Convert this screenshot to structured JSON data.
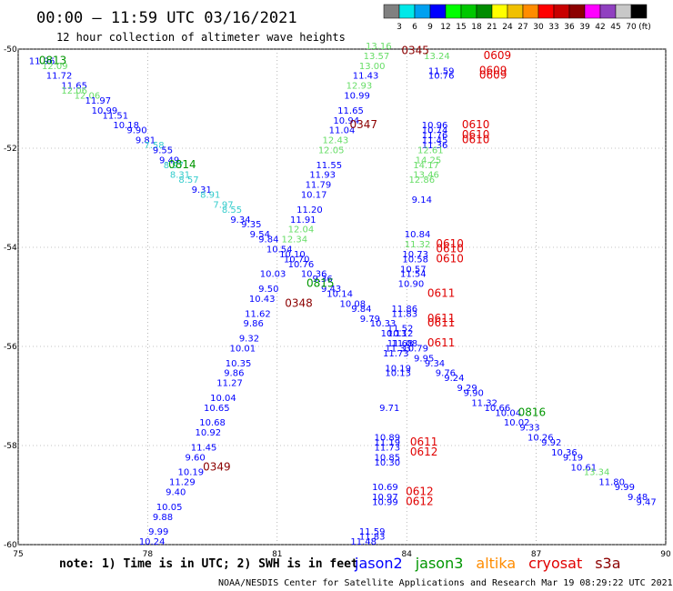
{
  "header": {
    "time_range": "00:00 – 11:59 UTC 03/16/2021",
    "subtitle": "12 hour collection of altimeter wave heights"
  },
  "colorbar": {
    "colors": [
      "#808080",
      "#00e8e8",
      "#00a0f0",
      "#0000ff",
      "#00ff00",
      "#00c800",
      "#008c00",
      "#ffff00",
      "#f0c000",
      "#ff8c00",
      "#ff0000",
      "#c80000",
      "#8c0000",
      "#ff00ff",
      "#9040c0",
      "#c8c8c8",
      "#000000"
    ],
    "labels": [
      "3",
      "6",
      "9",
      "12",
      "15",
      "18",
      "21",
      "24",
      "27",
      "30",
      "33",
      "36",
      "39",
      "42",
      "45",
      "70"
    ],
    "unit": "(ft)"
  },
  "chart_data": {
    "type": "scatter",
    "xlim": [
      75,
      90
    ],
    "ylim": [
      -60,
      -50
    ],
    "x_ticks": [
      "75",
      "78",
      "81",
      "84",
      "87",
      "90"
    ],
    "y_ticks": [
      "-50",
      "-52",
      "-54",
      "-56",
      "-58",
      "-60"
    ],
    "grid": true,
    "legend": {
      "note": "note:  1) Time is in UTC;  2) SWH is in feet",
      "entries": [
        {
          "name": "jason2",
          "color": "#0000ff"
        },
        {
          "name": "jason3",
          "color": "#009600"
        },
        {
          "name": "altika",
          "color": "#ff8c00"
        },
        {
          "name": "cryosat",
          "color": "#e00000"
        },
        {
          "name": "s3a",
          "color": "#8c0000"
        }
      ]
    },
    "footer": "NOAA/NESDIS Center for Satellite Applications and Research   Mar 19 08:29:22 UTC 2021",
    "time_labels": [
      {
        "text": "0813",
        "lon": 75.8,
        "lat": -50.3,
        "color": "#009600"
      },
      {
        "text": "0814",
        "lon": 78.8,
        "lat": -52.4,
        "color": "#009600"
      },
      {
        "text": "0815",
        "lon": 82.0,
        "lat": -54.8,
        "color": "#009600"
      },
      {
        "text": "0816",
        "lon": 86.9,
        "lat": -57.4,
        "color": "#009600"
      },
      {
        "text": "0345",
        "lon": 84.2,
        "lat": -50.1,
        "color": "#8c0000"
      },
      {
        "text": "0347",
        "lon": 83.0,
        "lat": -51.6,
        "color": "#8c0000"
      },
      {
        "text": "0348",
        "lon": 81.5,
        "lat": -55.2,
        "color": "#8c0000"
      },
      {
        "text": "0349",
        "lon": 79.6,
        "lat": -58.5,
        "color": "#8c0000"
      },
      {
        "text": "0609",
        "lon": 86.1,
        "lat": -50.2,
        "color": "#e00000"
      },
      {
        "text": "0609",
        "lon": 86.0,
        "lat": -50.5,
        "color": "#e00000"
      },
      {
        "text": "0609",
        "lon": 86.0,
        "lat": -50.6,
        "color": "#e00000"
      },
      {
        "text": "0610",
        "lon": 85.6,
        "lat": -51.6,
        "color": "#e00000"
      },
      {
        "text": "0610",
        "lon": 85.6,
        "lat": -51.8,
        "color": "#e00000"
      },
      {
        "text": "0610",
        "lon": 85.6,
        "lat": -51.9,
        "color": "#e00000"
      },
      {
        "text": "0610",
        "lon": 85.0,
        "lat": -54.0,
        "color": "#e00000"
      },
      {
        "text": "0610",
        "lon": 85.0,
        "lat": -54.1,
        "color": "#e00000"
      },
      {
        "text": "0610",
        "lon": 85.0,
        "lat": -54.3,
        "color": "#e00000"
      },
      {
        "text": "0611",
        "lon": 84.8,
        "lat": -55.0,
        "color": "#e00000"
      },
      {
        "text": "0611",
        "lon": 84.8,
        "lat": -55.5,
        "color": "#e00000"
      },
      {
        "text": "0611",
        "lon": 84.8,
        "lat": -55.6,
        "color": "#e00000"
      },
      {
        "text": "0611",
        "lon": 84.8,
        "lat": -56.0,
        "color": "#e00000"
      },
      {
        "text": "0611",
        "lon": 84.4,
        "lat": -58.0,
        "color": "#e00000"
      },
      {
        "text": "0612",
        "lon": 84.4,
        "lat": -58.2,
        "color": "#e00000"
      },
      {
        "text": "0612",
        "lon": 84.3,
        "lat": -59.0,
        "color": "#e00000"
      },
      {
        "text": "0612",
        "lon": 84.3,
        "lat": -59.2,
        "color": "#e00000"
      }
    ],
    "series": [
      {
        "name": "track 0813-0816",
        "points": [
          [
            75.55,
            -50.3,
            11.96,
            "#0000ff"
          ],
          [
            75.85,
            -50.4,
            12.09,
            "#66dd66"
          ],
          [
            75.95,
            -50.6,
            11.72,
            "#0000ff"
          ],
          [
            76.3,
            -50.8,
            11.65,
            "#0000ff"
          ],
          [
            76.3,
            -50.9,
            12.06,
            "#66dd66"
          ],
          [
            76.6,
            -51.0,
            12.06,
            "#66dd66"
          ],
          [
            76.85,
            -51.1,
            11.97,
            "#0000ff"
          ],
          [
            77.0,
            -51.3,
            10.99,
            "#0000ff"
          ],
          [
            77.25,
            -51.4,
            11.51,
            "#0000ff"
          ],
          [
            77.5,
            -51.6,
            10.18,
            "#0000ff"
          ],
          [
            77.75,
            -51.7,
            9.9,
            "#0000ff"
          ],
          [
            77.95,
            -51.9,
            9.81,
            "#0000ff"
          ],
          [
            78.15,
            -52.0,
            7.58,
            "#33cccc"
          ],
          [
            78.35,
            -52.1,
            9.55,
            "#0000ff"
          ],
          [
            78.5,
            -52.3,
            9.49,
            "#0000ff"
          ],
          [
            78.6,
            -52.4,
            8.97,
            "#33cccc"
          ],
          [
            78.75,
            -52.6,
            8.31,
            "#33cccc"
          ],
          [
            78.95,
            -52.7,
            8.57,
            "#33cccc"
          ],
          [
            79.25,
            -52.9,
            9.31,
            "#0000ff"
          ],
          [
            79.45,
            -53.0,
            8.91,
            "#33cccc"
          ],
          [
            79.75,
            -53.2,
            7.97,
            "#33cccc"
          ],
          [
            79.95,
            -53.3,
            8.55,
            "#33cccc"
          ],
          [
            80.15,
            -53.5,
            9.34,
            "#0000ff"
          ],
          [
            80.4,
            -53.6,
            9.35,
            "#0000ff"
          ],
          [
            80.6,
            -53.8,
            9.54,
            "#0000ff"
          ],
          [
            80.8,
            -53.9,
            9.84,
            "#0000ff"
          ],
          [
            81.05,
            -54.1,
            10.54,
            "#0000ff"
          ],
          [
            81.35,
            -54.2,
            10.1,
            "#0000ff"
          ],
          [
            81.45,
            -54.3,
            10.7,
            "#0000ff"
          ],
          [
            81.55,
            -54.4,
            10.76,
            "#0000ff"
          ],
          [
            81.85,
            -54.6,
            10.36,
            "#0000ff"
          ],
          [
            82.05,
            -54.7,
            9.36,
            "#0000ff"
          ],
          [
            82.25,
            -54.9,
            9.43,
            "#0000ff"
          ],
          [
            82.45,
            -55.0,
            10.14,
            "#0000ff"
          ],
          [
            82.75,
            -55.2,
            10.08,
            "#0000ff"
          ],
          [
            82.95,
            -55.3,
            9.84,
            "#0000ff"
          ],
          [
            83.15,
            -55.5,
            9.79,
            "#0000ff"
          ],
          [
            83.45,
            -55.6,
            10.33,
            "#0000ff"
          ],
          [
            83.7,
            -55.8,
            10.13,
            "#0000ff"
          ],
          [
            83.95,
            -56.0,
            11.08,
            "#0000ff"
          ],
          [
            84.2,
            -56.1,
            10.79,
            "#0000ff"
          ],
          [
            84.4,
            -56.3,
            9.95,
            "#0000ff"
          ],
          [
            84.65,
            -56.4,
            9.34,
            "#0000ff"
          ],
          [
            84.9,
            -56.6,
            9.76,
            "#0000ff"
          ],
          [
            85.1,
            -56.7,
            9.24,
            "#0000ff"
          ],
          [
            85.4,
            -56.9,
            9.29,
            "#0000ff"
          ],
          [
            85.55,
            -57.0,
            9.9,
            "#0000ff"
          ],
          [
            85.8,
            -57.2,
            11.32,
            "#0000ff"
          ],
          [
            86.1,
            -57.3,
            10.66,
            "#0000ff"
          ],
          [
            86.35,
            -57.4,
            10.04,
            "#0000ff"
          ],
          [
            86.55,
            -57.6,
            10.02,
            "#0000ff"
          ],
          [
            86.85,
            -57.7,
            9.33,
            "#0000ff"
          ],
          [
            87.1,
            -57.9,
            10.26,
            "#0000ff"
          ],
          [
            87.35,
            -58.0,
            9.92,
            "#0000ff"
          ],
          [
            87.65,
            -58.2,
            10.36,
            "#0000ff"
          ],
          [
            87.85,
            -58.3,
            9.19,
            "#0000ff"
          ],
          [
            88.1,
            -58.5,
            10.61,
            "#0000ff"
          ],
          [
            88.4,
            -58.6,
            13.34,
            "#66dd66"
          ],
          [
            88.75,
            -58.8,
            11.8,
            "#0000ff"
          ],
          [
            89.05,
            -58.9,
            9.99,
            "#0000ff"
          ],
          [
            89.35,
            -59.1,
            9.48,
            "#0000ff"
          ],
          [
            89.55,
            -59.2,
            9.47,
            "#0000ff"
          ]
        ]
      },
      {
        "name": "track 0345-0349",
        "points": [
          [
            83.35,
            -50.0,
            13.16,
            "#66dd66"
          ],
          [
            83.3,
            -50.2,
            13.57,
            "#66dd66"
          ],
          [
            83.2,
            -50.4,
            13.0,
            "#66dd66"
          ],
          [
            83.05,
            -50.6,
            11.43,
            "#0000ff"
          ],
          [
            82.9,
            -50.8,
            12.93,
            "#66dd66"
          ],
          [
            82.85,
            -51.0,
            10.99,
            "#0000ff"
          ],
          [
            82.7,
            -51.3,
            11.65,
            "#0000ff"
          ],
          [
            82.6,
            -51.5,
            10.94,
            "#0000ff"
          ],
          [
            82.5,
            -51.7,
            11.04,
            "#0000ff"
          ],
          [
            82.35,
            -51.9,
            12.43,
            "#66dd66"
          ],
          [
            82.25,
            -52.1,
            12.05,
            "#66dd66"
          ],
          [
            82.2,
            -52.4,
            11.55,
            "#0000ff"
          ],
          [
            82.05,
            -52.6,
            11.93,
            "#0000ff"
          ],
          [
            81.95,
            -52.8,
            11.79,
            "#0000ff"
          ],
          [
            81.85,
            -53.0,
            10.17,
            "#0000ff"
          ],
          [
            81.75,
            -53.3,
            11.2,
            "#0000ff"
          ],
          [
            81.6,
            -53.5,
            11.91,
            "#0000ff"
          ],
          [
            81.55,
            -53.7,
            12.04,
            "#66dd66"
          ],
          [
            81.4,
            -53.9,
            12.34,
            "#66dd66"
          ],
          [
            80.9,
            -54.6,
            10.03,
            "#0000ff"
          ],
          [
            80.8,
            -54.9,
            9.5,
            "#0000ff"
          ],
          [
            80.65,
            -55.1,
            10.43,
            "#0000ff"
          ],
          [
            80.55,
            -55.4,
            11.62,
            "#0000ff"
          ],
          [
            80.45,
            -55.6,
            9.86,
            "#0000ff"
          ],
          [
            80.35,
            -55.9,
            9.32,
            "#0000ff"
          ],
          [
            80.2,
            -56.1,
            10.01,
            "#0000ff"
          ],
          [
            80.1,
            -56.4,
            10.35,
            "#0000ff"
          ],
          [
            80.0,
            -56.6,
            9.86,
            "#0000ff"
          ],
          [
            79.9,
            -56.8,
            11.27,
            "#0000ff"
          ],
          [
            79.75,
            -57.1,
            10.04,
            "#0000ff"
          ],
          [
            79.6,
            -57.3,
            10.65,
            "#0000ff"
          ],
          [
            79.5,
            -57.6,
            10.68,
            "#0000ff"
          ],
          [
            79.4,
            -57.8,
            10.92,
            "#0000ff"
          ],
          [
            79.3,
            -58.1,
            11.45,
            "#0000ff"
          ],
          [
            79.1,
            -58.3,
            9.6,
            "#0000ff"
          ],
          [
            79.0,
            -58.6,
            10.19,
            "#0000ff"
          ],
          [
            78.8,
            -58.8,
            11.29,
            "#0000ff"
          ],
          [
            78.65,
            -59.0,
            9.4,
            "#0000ff"
          ],
          [
            78.5,
            -59.3,
            10.05,
            "#0000ff"
          ],
          [
            78.35,
            -59.5,
            9.88,
            "#0000ff"
          ],
          [
            78.25,
            -59.8,
            9.99,
            "#0000ff"
          ],
          [
            78.1,
            -60.0,
            10.24,
            "#0000ff"
          ]
        ]
      },
      {
        "name": "track 0609-0612",
        "points": [
          [
            84.7,
            -50.2,
            13.24,
            "#66dd66"
          ],
          [
            84.8,
            -50.5,
            11.59,
            "#0000ff"
          ],
          [
            84.8,
            -50.6,
            10.76,
            "#0000ff"
          ],
          [
            84.65,
            -51.6,
            10.96,
            "#0000ff"
          ],
          [
            84.65,
            -51.7,
            10.74,
            "#0000ff"
          ],
          [
            84.65,
            -51.8,
            11.76,
            "#0000ff"
          ],
          [
            84.65,
            -51.9,
            11.45,
            "#0000ff"
          ],
          [
            84.65,
            -52.0,
            11.36,
            "#0000ff"
          ],
          [
            84.55,
            -52.1,
            12.61,
            "#66dd66"
          ],
          [
            84.5,
            -52.3,
            14.25,
            "#66dd66"
          ],
          [
            84.45,
            -52.4,
            14.17,
            "#66dd66"
          ],
          [
            84.45,
            -52.6,
            13.46,
            "#66dd66"
          ],
          [
            84.35,
            -52.7,
            12.86,
            "#66dd66"
          ],
          [
            84.35,
            -53.1,
            9.14,
            "#0000ff"
          ],
          [
            84.25,
            -53.8,
            10.84,
            "#0000ff"
          ],
          [
            84.25,
            -54.0,
            11.32,
            "#66dd66"
          ],
          [
            84.2,
            -54.2,
            10.73,
            "#0000ff"
          ],
          [
            84.2,
            -54.3,
            10.58,
            "#0000ff"
          ],
          [
            84.15,
            -54.5,
            10.57,
            "#0000ff"
          ],
          [
            84.15,
            -54.6,
            11.54,
            "#0000ff"
          ],
          [
            84.1,
            -54.8,
            10.9,
            "#0000ff"
          ],
          [
            83.95,
            -55.3,
            11.86,
            "#0000ff"
          ],
          [
            83.95,
            -55.4,
            11.83,
            "#0000ff"
          ],
          [
            83.85,
            -55.7,
            11.52,
            "#0000ff"
          ],
          [
            83.85,
            -55.8,
            10.12,
            "#0000ff"
          ],
          [
            83.85,
            -56.0,
            11.68,
            "#0000ff"
          ],
          [
            83.8,
            -56.1,
            11.33,
            "#0000ff"
          ],
          [
            83.75,
            -56.2,
            11.73,
            "#0000ff"
          ],
          [
            83.8,
            -56.5,
            10.19,
            "#0000ff"
          ],
          [
            83.8,
            -56.6,
            10.13,
            "#0000ff"
          ],
          [
            83.6,
            -57.3,
            9.71,
            "#0000ff"
          ],
          [
            83.55,
            -57.9,
            10.89,
            "#0000ff"
          ],
          [
            83.55,
            -58.0,
            11.19,
            "#0000ff"
          ],
          [
            83.55,
            -58.1,
            11.73,
            "#0000ff"
          ],
          [
            83.55,
            -58.3,
            10.85,
            "#0000ff"
          ],
          [
            83.55,
            -58.4,
            10.3,
            "#0000ff"
          ],
          [
            83.5,
            -58.9,
            10.69,
            "#0000ff"
          ],
          [
            83.5,
            -59.1,
            10.97,
            "#0000ff"
          ],
          [
            83.5,
            -59.2,
            10.99,
            "#0000ff"
          ],
          [
            83.2,
            -59.8,
            11.59,
            "#0000ff"
          ],
          [
            83.2,
            -59.9,
            11.83,
            "#0000ff"
          ],
          [
            83.0,
            -60.0,
            11.48,
            "#0000ff"
          ]
        ]
      }
    ]
  }
}
